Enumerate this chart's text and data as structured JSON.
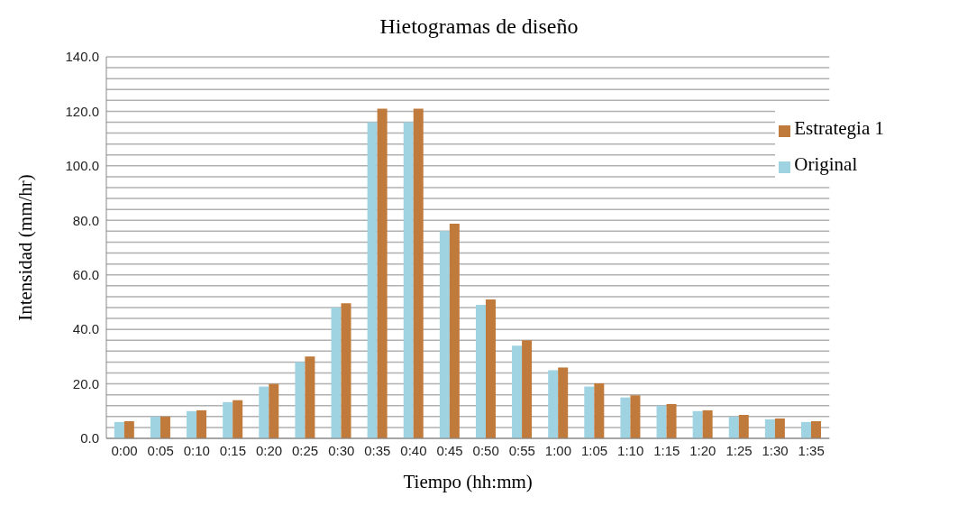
{
  "chart_data": {
    "type": "bar",
    "title": "Hietogramas  de diseño",
    "xlabel": "Tiempo (hh:mm)",
    "ylabel": "Intensidad (mm/hr)",
    "categories": [
      "0:00",
      "0:05",
      "0:10",
      "0:15",
      "0:20",
      "0:25",
      "0:30",
      "0:35",
      "0:40",
      "0:45",
      "0:50",
      "0:55",
      "1:00",
      "1:05",
      "1:10",
      "1:15",
      "1:20",
      "1:25",
      "1:30",
      "1:35"
    ],
    "series": [
      {
        "name": "Original",
        "color": "#9fd3e2",
        "values": [
          6,
          8,
          10,
          13.3,
          19,
          28,
          48,
          116,
          116,
          76,
          49,
          34,
          25,
          19,
          15,
          12,
          10,
          8,
          7,
          6
        ]
      },
      {
        "name": "Estrategia 1",
        "color": "#c07a3c",
        "values": [
          6.3,
          8,
          10.3,
          14,
          20,
          30,
          49.6,
          121,
          121,
          78.8,
          51,
          36,
          26,
          20.2,
          15.8,
          12.6,
          10.3,
          8.6,
          7.3,
          6.3
        ]
      }
    ],
    "ylim": [
      0,
      140
    ],
    "yticks": [
      {
        "value": 0,
        "label": "0.0"
      },
      {
        "value": 4,
        "label": null
      },
      {
        "value": 8,
        "label": null
      },
      {
        "value": 12,
        "label": null
      },
      {
        "value": 16,
        "label": null
      },
      {
        "value": 20,
        "label": "20.0"
      },
      {
        "value": 24,
        "label": null
      },
      {
        "value": 28,
        "label": null
      },
      {
        "value": 32,
        "label": null
      },
      {
        "value": 36,
        "label": null
      },
      {
        "value": 40,
        "label": "40.0"
      },
      {
        "value": 44,
        "label": null
      },
      {
        "value": 48,
        "label": null
      },
      {
        "value": 52,
        "label": null
      },
      {
        "value": 56,
        "label": null
      },
      {
        "value": 60,
        "label": "60.0"
      },
      {
        "value": 64,
        "label": null
      },
      {
        "value": 68,
        "label": null
      },
      {
        "value": 72,
        "label": null
      },
      {
        "value": 76,
        "label": null
      },
      {
        "value": 80,
        "label": "80.0"
      },
      {
        "value": 84,
        "label": null
      },
      {
        "value": 88,
        "label": null
      },
      {
        "value": 92,
        "label": null
      },
      {
        "value": 96,
        "label": null
      },
      {
        "value": 100,
        "label": "100.0"
      },
      {
        "value": 104,
        "label": null
      },
      {
        "value": 108,
        "label": null
      },
      {
        "value": 112,
        "label": null
      },
      {
        "value": 116,
        "label": null
      },
      {
        "value": 120,
        "label": "120.0"
      },
      {
        "value": 124,
        "label": null
      },
      {
        "value": 128,
        "label": null
      },
      {
        "value": 132,
        "label": null
      },
      {
        "value": 136,
        "label": null
      },
      {
        "value": 140,
        "label": "140.0"
      }
    ],
    "grid": "y",
    "legend": "top right"
  }
}
